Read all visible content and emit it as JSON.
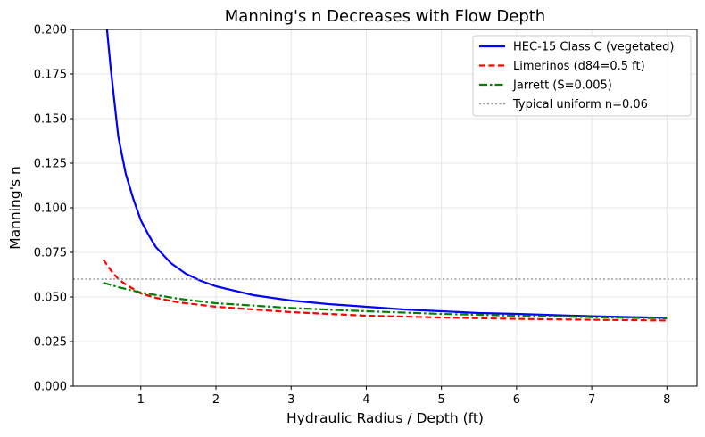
{
  "chart_data": {
    "type": "line",
    "title": "Manning's n Decreases with Flow Depth",
    "xlabel": "Hydraulic Radius / Depth (ft)",
    "ylabel": "Manning's n",
    "xlim": [
      0.1,
      8.4
    ],
    "ylim": [
      0,
      0.2
    ],
    "xticks": [
      1,
      2,
      3,
      4,
      5,
      6,
      7,
      8
    ],
    "xtick_labels": [
      "1",
      "2",
      "3",
      "4",
      "5",
      "6",
      "7",
      "8"
    ],
    "yticks": [
      0,
      0.025,
      0.05,
      0.075,
      0.1,
      0.125,
      0.15,
      0.175,
      0.2
    ],
    "ytick_labels": [
      "0.000",
      "0.025",
      "0.050",
      "0.075",
      "0.100",
      "0.125",
      "0.150",
      "0.175",
      "0.200"
    ],
    "grid": true,
    "legend_position": "top-right",
    "series": [
      {
        "name": "HEC-15 Class C (vegetated)",
        "color": "#0000ff",
        "style": "solid",
        "points": [
          [
            0.55,
            0.2
          ],
          [
            0.6,
            0.178
          ],
          [
            0.7,
            0.14
          ],
          [
            0.8,
            0.119
          ],
          [
            0.9,
            0.105
          ],
          [
            1.0,
            0.093
          ],
          [
            1.1,
            0.085
          ],
          [
            1.2,
            0.078
          ],
          [
            1.4,
            0.069
          ],
          [
            1.6,
            0.063
          ],
          [
            1.8,
            0.059
          ],
          [
            2.0,
            0.056
          ],
          [
            2.5,
            0.051
          ],
          [
            3.0,
            0.048
          ],
          [
            3.5,
            0.046
          ],
          [
            4.0,
            0.0445
          ],
          [
            4.5,
            0.043
          ],
          [
            5.0,
            0.042
          ],
          [
            5.5,
            0.041
          ],
          [
            6.0,
            0.0405
          ],
          [
            6.5,
            0.0398
          ],
          [
            7.0,
            0.0392
          ],
          [
            7.5,
            0.0387
          ],
          [
            8.0,
            0.0383
          ]
        ]
      },
      {
        "name": "Limerinos (d84=0.5 ft)",
        "color": "#ff0000",
        "style": "dashed",
        "points": [
          [
            0.5,
            0.071
          ],
          [
            0.6,
            0.065
          ],
          [
            0.7,
            0.06
          ],
          [
            0.8,
            0.057
          ],
          [
            0.9,
            0.0545
          ],
          [
            1.0,
            0.052
          ],
          [
            1.2,
            0.0495
          ],
          [
            1.5,
            0.047
          ],
          [
            2.0,
            0.0445
          ],
          [
            2.5,
            0.043
          ],
          [
            3.0,
            0.0415
          ],
          [
            3.5,
            0.0405
          ],
          [
            4.0,
            0.0395
          ],
          [
            5.0,
            0.0385
          ],
          [
            6.0,
            0.0377
          ],
          [
            7.0,
            0.0372
          ],
          [
            8.0,
            0.0368
          ]
        ]
      },
      {
        "name": "Jarrett (S=0.005)",
        "color": "#008000",
        "style": "dashdot",
        "points": [
          [
            0.5,
            0.058
          ],
          [
            0.7,
            0.0555
          ],
          [
            1.0,
            0.0525
          ],
          [
            1.5,
            0.049
          ],
          [
            2.0,
            0.0465
          ],
          [
            3.0,
            0.0438
          ],
          [
            4.0,
            0.042
          ],
          [
            5.0,
            0.0405
          ],
          [
            6.0,
            0.0395
          ],
          [
            7.0,
            0.0387
          ],
          [
            8.0,
            0.038
          ]
        ]
      },
      {
        "name": "Typical uniform n=0.06",
        "color": "#999999",
        "style": "dotted",
        "points": [
          [
            0.1,
            0.06
          ],
          [
            8.4,
            0.06
          ]
        ]
      }
    ]
  }
}
